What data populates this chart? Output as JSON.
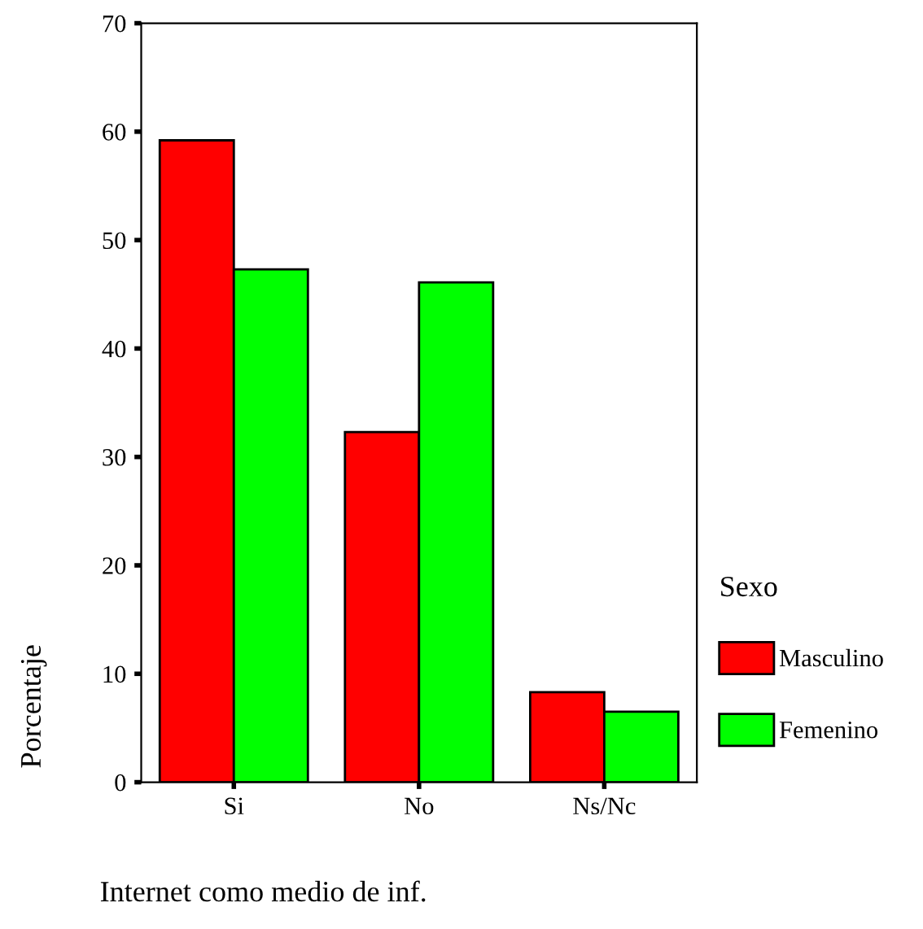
{
  "chart_data": {
    "type": "bar",
    "xlabel": "Internet como medio de inf.",
    "ylabel": "Porcentaje",
    "legend_title": "Sexo",
    "legend": "right",
    "categories": [
      "Si",
      "No",
      "Ns/Nc"
    ],
    "series": [
      {
        "name": "Masculino",
        "color": "#ff0000",
        "values": [
          59.2,
          32.3,
          8.3
        ]
      },
      {
        "name": "Femenino",
        "color": "#00ff00",
        "values": [
          47.3,
          46.1,
          6.5
        ]
      }
    ],
    "ylim": [
      0,
      70
    ],
    "yticks": [
      0,
      10,
      20,
      30,
      40,
      50,
      60,
      70
    ],
    "grid": false
  }
}
